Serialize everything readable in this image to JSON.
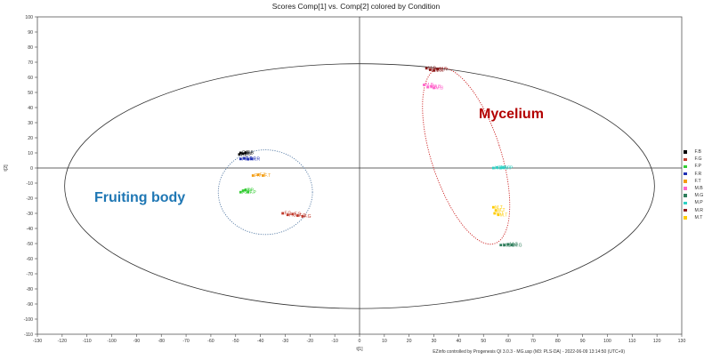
{
  "chart_data": {
    "type": "scatter",
    "title": "Scores Comp[1] vs. Comp[2] colored by Condition",
    "xlabel": "t[1]",
    "ylabel": "t[2]",
    "xlim": [
      -130,
      130
    ],
    "ylim": [
      -110,
      100
    ],
    "xticks": [
      -130,
      -120,
      -110,
      -100,
      -90,
      -80,
      -70,
      -60,
      -50,
      -40,
      -30,
      -20,
      -10,
      0,
      10,
      20,
      30,
      40,
      50,
      60,
      70,
      80,
      90,
      100,
      110,
      120,
      130
    ],
    "yticks": [
      -110,
      -100,
      -90,
      -80,
      -70,
      -60,
      -50,
      -40,
      -30,
      -20,
      -10,
      0,
      10,
      20,
      30,
      40,
      50,
      60,
      70,
      80,
      90,
      100
    ],
    "confidence_ellipse": {
      "center": [
        0,
        -12
      ],
      "radius_x": 119,
      "radius_y": 81
    },
    "series": [
      {
        "name": "F.B",
        "color": "#000000",
        "points": [
          [
            -48,
            10
          ],
          [
            -47,
            9.5
          ],
          [
            -46,
            10.2
          ],
          [
            -48.5,
            9
          ]
        ],
        "labels": [
          "F.B",
          "F.B",
          "F.B",
          "F.B"
        ]
      },
      {
        "name": "F.G",
        "color": "#c0392b",
        "points": [
          [
            -31,
            -30
          ],
          [
            -29,
            -31
          ],
          [
            -27,
            -30.5
          ],
          [
            -25,
            -31.5
          ],
          [
            -23,
            -32
          ]
        ],
        "labels": [
          "F.G",
          "F.G",
          "F.G",
          "F.G",
          "F.G"
        ]
      },
      {
        "name": "F.P",
        "color": "#33cc33",
        "points": [
          [
            -48,
            -16
          ],
          [
            -47,
            -15
          ],
          [
            -46,
            -14.5
          ],
          [
            -45,
            -16
          ]
        ],
        "labels": [
          "F.P",
          "F.P",
          "F.P",
          "F.P"
        ]
      },
      {
        "name": "F.R",
        "color": "#1f2fb3",
        "points": [
          [
            -48,
            6
          ],
          [
            -46.5,
            6.3
          ],
          [
            -45,
            5.8
          ],
          [
            -43.5,
            6
          ]
        ],
        "labels": [
          "F.R",
          "F.R",
          "F.R",
          "F.R"
        ]
      },
      {
        "name": "F.T",
        "color": "#f39c12",
        "points": [
          [
            -43,
            -5
          ],
          [
            -41,
            -4.5
          ],
          [
            -39,
            -5
          ]
        ],
        "labels": [
          "F.T",
          "F.T",
          "F.T"
        ]
      },
      {
        "name": "M.B",
        "color": "#ff66cc",
        "points": [
          [
            26,
            55
          ],
          [
            27.5,
            53.5
          ],
          [
            29,
            54
          ],
          [
            30,
            53
          ]
        ],
        "labels": [
          "M.B",
          "M.B",
          "M.B",
          "M.B"
        ]
      },
      {
        "name": "M.G",
        "color": "#2e7d5b",
        "points": [
          [
            57,
            -51
          ],
          [
            58.5,
            -51
          ],
          [
            60,
            -50.5
          ],
          [
            61.5,
            -51
          ]
        ],
        "labels": [
          "M.G",
          "M.G",
          "M.G",
          "M.G"
        ]
      },
      {
        "name": "M.P",
        "color": "#2ed1c4",
        "points": [
          [
            54,
            0
          ],
          [
            55.5,
            0.3
          ],
          [
            57,
            0
          ],
          [
            58,
            0.2
          ]
        ],
        "labels": [
          "M.P",
          "M.P",
          "M.P",
          "M.P"
        ]
      },
      {
        "name": "M.R",
        "color": "#8b1a1a",
        "points": [
          [
            27,
            66
          ],
          [
            28.5,
            65
          ],
          [
            30,
            64.5
          ],
          [
            31.5,
            65.5
          ]
        ],
        "labels": [
          "M.R",
          "M.R",
          "M.R",
          "M.R"
        ]
      },
      {
        "name": "M.T",
        "color": "#ffcc00",
        "points": [
          [
            54,
            -26
          ],
          [
            55,
            -28
          ],
          [
            56,
            -31
          ],
          [
            54.5,
            -30
          ]
        ],
        "labels": [
          "M.T",
          "M.T",
          "M.T",
          "M.T"
        ]
      }
    ],
    "groups": [
      {
        "label": "Fruiting body",
        "color": "#1f77b4",
        "center": [
          -38,
          -16
        ],
        "radius_x": 19,
        "radius_y": 28,
        "rotation_deg": 0,
        "outline_color": "#5b7fa8"
      },
      {
        "label": "Mycelium",
        "color": "#b30000",
        "center": [
          43,
          8
        ],
        "radius_x": 14,
        "radius_y": 61,
        "rotation_deg": -18,
        "outline_color": "#cc2222"
      }
    ],
    "legend_placement": "right",
    "grid": false
  },
  "footer": "EZinfo controlled by Progenesis QI 3.0.3 - MG.usp (M3: PLS-DA) - 2022-06-09 13:14:50 (UTC+9)"
}
